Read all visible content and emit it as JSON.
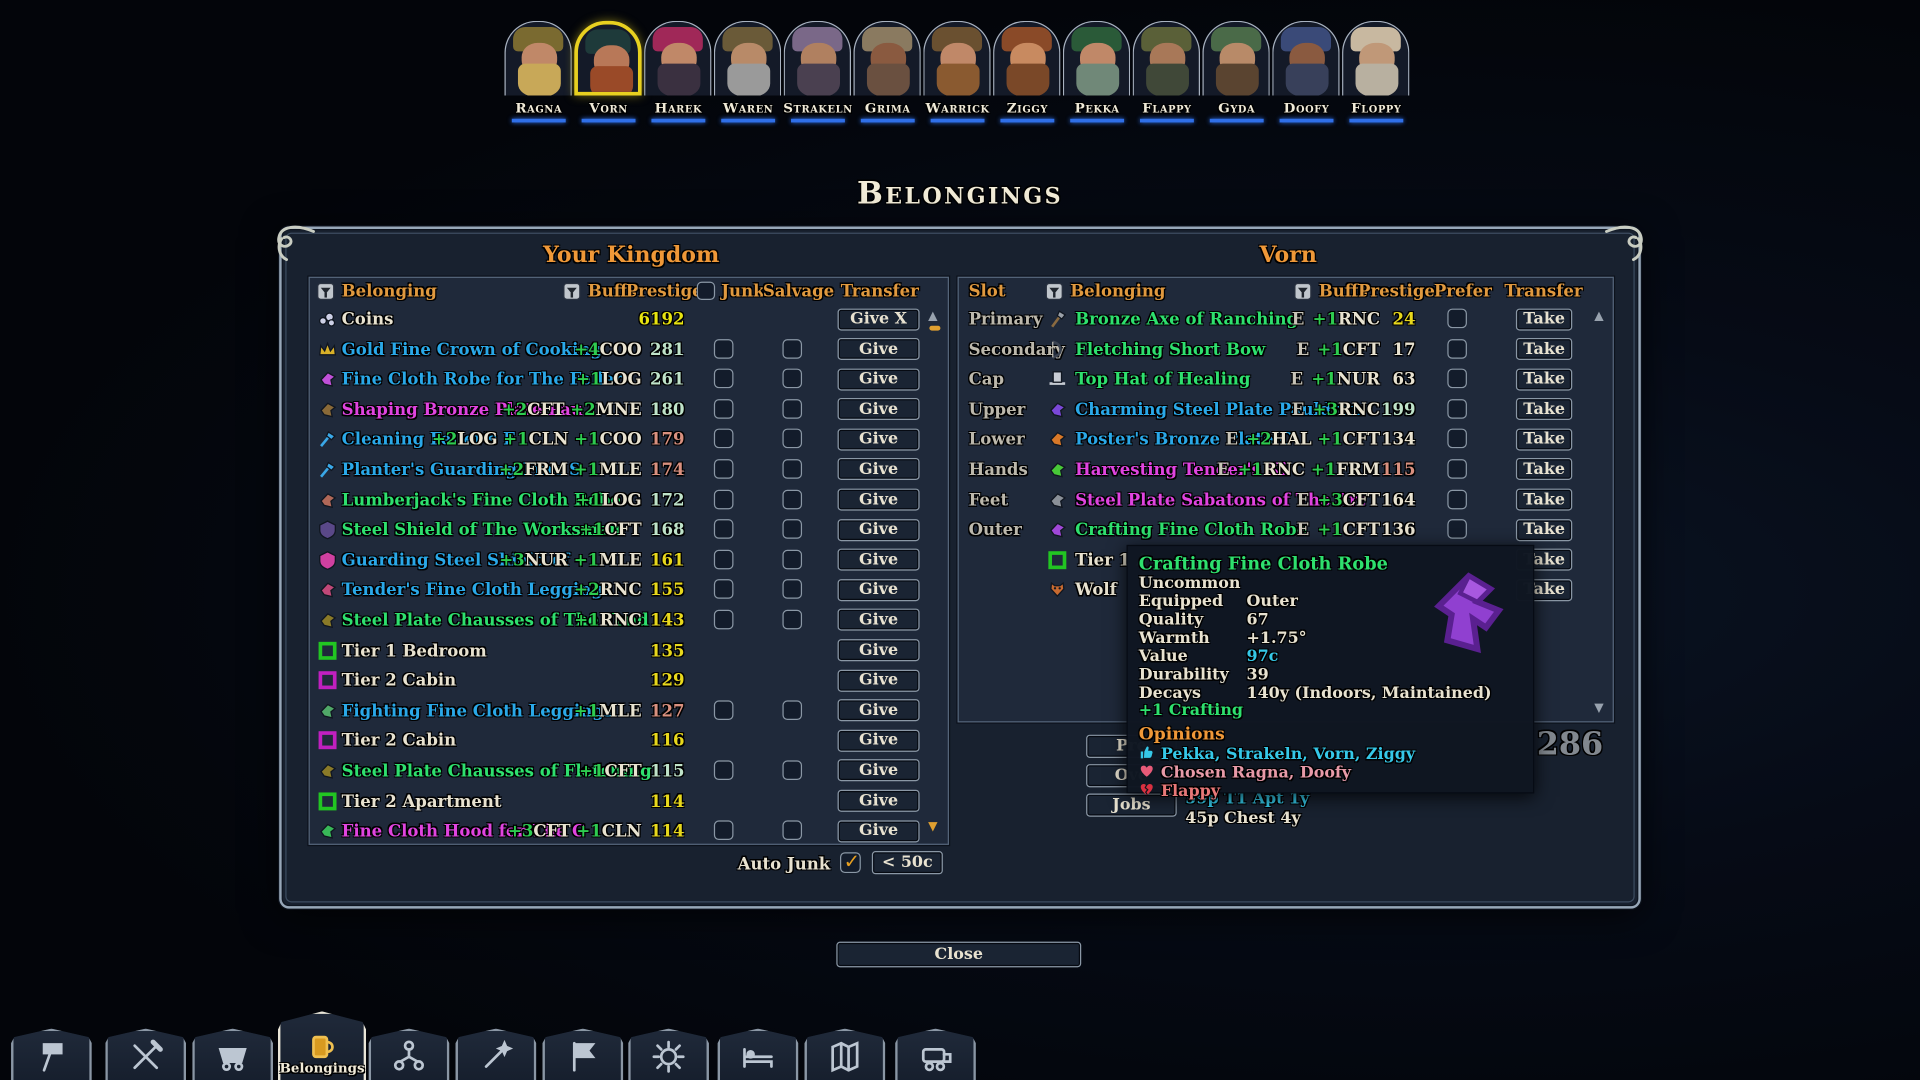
{
  "title": "Belongings",
  "close_label": "Close",
  "characters": [
    {
      "name": "Ragna"
    },
    {
      "name": "Vorn",
      "selected": true
    },
    {
      "name": "Harek"
    },
    {
      "name": "Waren"
    },
    {
      "name": "Strakeln"
    },
    {
      "name": "Grima"
    },
    {
      "name": "Warrick"
    },
    {
      "name": "Ziggy"
    },
    {
      "name": "Pekka"
    },
    {
      "name": "Flappy"
    },
    {
      "name": "Gyda"
    },
    {
      "name": "Doofy"
    },
    {
      "name": "Floppy"
    }
  ],
  "panel": {
    "left": {
      "title": "Your Kingdom",
      "headers": {
        "belonging": "Belonging",
        "buffs": "Buffs",
        "prestige": "Prestige",
        "junk": "Junk",
        "salvage": "Salvage",
        "transfer": "Transfer"
      },
      "rows": [
        {
          "icon": "coins",
          "icon_color": "#cdd0e6",
          "name": "Coins",
          "color": "#e8e2d0",
          "buffs": [],
          "prestige": "6192",
          "p_color": "#e8e410",
          "junk": false,
          "salvage": false,
          "transfer": "Give X"
        },
        {
          "icon": "crown",
          "icon_color": "#d8b028",
          "name": "Gold Fine Crown of Cooking",
          "color": "#2aa8e8",
          "buffs": [
            {
              "v": "+4",
              "c": "COO"
            }
          ],
          "prestige": "281",
          "p_color": "#bfe3c9",
          "junk": true,
          "salvage": true,
          "transfer": "Give"
        },
        {
          "icon": "cloth",
          "icon_color": "#c050d8",
          "name": "Fine Cloth Robe for The Feller",
          "color": "#2aa8e8",
          "buffs": [
            {
              "v": "+1",
              "c": "LOG"
            }
          ],
          "prestige": "261",
          "p_color": "#bfe3c9",
          "junk": true,
          "salvage": true,
          "transfer": "Give"
        },
        {
          "icon": "cloth",
          "icon_color": "#8a6a38",
          "name": "Shaping Bronze Plate Pau",
          "color": "#e044e0",
          "buffs": [
            {
              "v": "+2",
              "c": "CFT"
            },
            {
              "v": "+2",
              "c": "MNE"
            }
          ],
          "prestige": "180",
          "p_color": "#bfe3c9",
          "junk": true,
          "salvage": true,
          "transfer": "Give"
        },
        {
          "icon": "tool",
          "icon_color": "#3aa8e8",
          "name": "Cleaning Feller's F",
          "color": "#2aa8e8",
          "buffs": [
            {
              "v": "+2",
              "c": "LOG"
            },
            {
              "v": "+1",
              "c": "CLN"
            },
            {
              "v": "+1",
              "c": "COO"
            }
          ],
          "prestige": "179",
          "p_color": "#d9907f",
          "junk": true,
          "salvage": true,
          "transfer": "Give"
        },
        {
          "icon": "tool",
          "icon_color": "#3aa8e8",
          "name": "Planter's Guarding Fine S",
          "color": "#2aa8e8",
          "buffs": [
            {
              "v": "+2",
              "c": "FRM"
            },
            {
              "v": "+1",
              "c": "MLE"
            }
          ],
          "prestige": "174",
          "p_color": "#d9907f",
          "junk": true,
          "salvage": true,
          "transfer": "Give"
        },
        {
          "icon": "cloth",
          "icon_color": "#b06858",
          "name": "Lumberjack's Fine Cloth Robe",
          "color": "#2ee06e",
          "buffs": [
            {
              "v": "+1",
              "c": "LOG"
            }
          ],
          "prestige": "172",
          "p_color": "#bfe3c9",
          "junk": true,
          "salvage": true,
          "transfer": "Give"
        },
        {
          "icon": "shield",
          "icon_color": "#5a4888",
          "name": "Steel Shield of The Worksman",
          "color": "#2ee06e",
          "buffs": [
            {
              "v": "+1",
              "c": "CFT"
            }
          ],
          "prestige": "168",
          "p_color": "#bfe3c9",
          "junk": true,
          "salvage": true,
          "transfer": "Give"
        },
        {
          "icon": "shield",
          "icon_color": "#d040a0",
          "name": "Guarding Steel Shield of",
          "color": "#2aa8e8",
          "buffs": [
            {
              "v": "+3",
              "c": "NUR"
            },
            {
              "v": "+1",
              "c": "MLE"
            }
          ],
          "prestige": "161",
          "p_color": "#e8d81c",
          "junk": true,
          "salvage": true,
          "transfer": "Give"
        },
        {
          "icon": "cloth",
          "icon_color": "#c04878",
          "name": "Tender's Fine Cloth Leggings",
          "color": "#2aa8e8",
          "buffs": [
            {
              "v": "+2",
              "c": "RNC"
            }
          ],
          "prestige": "155",
          "p_color": "#e8d81c",
          "junk": true,
          "salvage": true,
          "transfer": "Give"
        },
        {
          "icon": "cloth",
          "icon_color": "#8a7a28",
          "name": "Steel Plate Chausses of The Tend",
          "color": "#2ee06e",
          "buffs": [
            {
              "v": "+1",
              "c": "RNC"
            }
          ],
          "prestige": "143",
          "p_color": "#e8d81c",
          "junk": true,
          "salvage": true,
          "transfer": "Give"
        },
        {
          "icon": "square",
          "icon_color": "#22c522",
          "name": "Tier 1 Bedroom",
          "color": "#e8e2d0",
          "buffs": [],
          "prestige": "135",
          "p_color": "#e8d81c",
          "junk": false,
          "salvage": false,
          "transfer": "Give"
        },
        {
          "icon": "square",
          "icon_color": "#c020c0",
          "name": "Tier 2 Cabin",
          "color": "#e8e2d0",
          "buffs": [],
          "prestige": "129",
          "p_color": "#e8d81c",
          "junk": false,
          "salvage": false,
          "transfer": "Give"
        },
        {
          "icon": "cloth",
          "icon_color": "#50a868",
          "name": "Fighting Fine Cloth Leggings",
          "color": "#2aa8e8",
          "buffs": [
            {
              "v": "+1",
              "c": "MLE"
            }
          ],
          "prestige": "127",
          "p_color": "#d9907f",
          "junk": true,
          "salvage": true,
          "transfer": "Give"
        },
        {
          "icon": "square",
          "icon_color": "#c020c0",
          "name": "Tier 2 Cabin",
          "color": "#e8e2d0",
          "buffs": [],
          "prestige": "116",
          "p_color": "#e8d81c",
          "junk": false,
          "salvage": false,
          "transfer": "Give"
        },
        {
          "icon": "cloth",
          "icon_color": "#8a7a28",
          "name": "Steel Plate Chausses of Fletching",
          "color": "#2ee06e",
          "buffs": [
            {
              "v": "+1",
              "c": "CFT"
            }
          ],
          "prestige": "115",
          "p_color": "#bfe3c9",
          "junk": true,
          "salvage": true,
          "transfer": "Give"
        },
        {
          "icon": "square",
          "icon_color": "#22c522",
          "name": "Tier 2 Apartment",
          "color": "#e8e2d0",
          "buffs": [],
          "prestige": "114",
          "p_color": "#e8d81c",
          "junk": false,
          "salvage": false,
          "transfer": "Give"
        },
        {
          "icon": "cloth",
          "icon_color": "#38b858",
          "name": "Fine Cloth Hood for The C",
          "color": "#e044e0",
          "buffs": [
            {
              "v": "+3",
              "c": "CFT"
            },
            {
              "v": "+1",
              "c": "CLN"
            }
          ],
          "prestige": "114",
          "p_color": "#e8d81c",
          "junk": true,
          "salvage": true,
          "transfer": "Give"
        }
      ],
      "auto_junk_label": "Auto Junk",
      "auto_junk_checked": true,
      "junk_threshold": "< 50c"
    },
    "right": {
      "title": "Vorn",
      "headers": {
        "slot": "Slot",
        "belonging": "Belonging",
        "buffs": "Buffs",
        "prestige": "Prestige",
        "prefer": "Prefer",
        "transfer": "Transfer"
      },
      "rows": [
        {
          "slot": "Primary",
          "icon": "axe",
          "icon_color": "#9aa0a8",
          "name": "Bronze Axe of Ranching",
          "color": "#2ee06e",
          "eq": "E",
          "buffs": [
            {
              "v": "+1",
              "c": "RNC"
            }
          ],
          "prestige": "24",
          "p_color": "#e8d81c",
          "prefer": true,
          "transfer": "Take"
        },
        {
          "slot": "Secondary",
          "icon": "bow",
          "icon_color": "#3a4250",
          "name": "Fletching Short Bow",
          "color": "#2ee06e",
          "eq": "E",
          "buffs": [
            {
              "v": "+1",
              "c": "CFT"
            }
          ],
          "prestige": "17",
          "p_color": "#e8e2d0",
          "prefer": true,
          "transfer": "Take"
        },
        {
          "slot": "Cap",
          "icon": "hat",
          "icon_color": "#c8ccd4",
          "name": "Top Hat of Healing",
          "color": "#2ee06e",
          "eq": "E",
          "buffs": [
            {
              "v": "+1",
              "c": "NUR"
            }
          ],
          "prestige": "63",
          "p_color": "#e8e2d0",
          "prefer": true,
          "transfer": "Take"
        },
        {
          "slot": "Upper",
          "icon": "cloth",
          "icon_color": "#7a48d8",
          "name": "Charming Steel Plate Pauldron",
          "color": "#2aa8e8",
          "eq": "E",
          "buffs": [
            {
              "v": "+3",
              "c": "RNC"
            }
          ],
          "prestige": "199",
          "p_color": "#bfe3c9",
          "prefer": true,
          "transfer": "Take"
        },
        {
          "slot": "Lower",
          "icon": "cloth",
          "icon_color": "#d87828",
          "name": "Poster's Bronze Plate C",
          "color": "#2aa8e8",
          "eq": "E",
          "buffs": [
            {
              "v": "+2",
              "c": "HAL"
            },
            {
              "v": "+1",
              "c": "CFT"
            }
          ],
          "prestige": "134",
          "p_color": "#e8e2d0",
          "prefer": true,
          "transfer": "Take"
        },
        {
          "slot": "Hands",
          "icon": "cloth",
          "icon_color": "#48c838",
          "name": "Harvesting Tender's Ki",
          "color": "#e044e0",
          "eq": "E",
          "buffs": [
            {
              "v": "+1",
              "c": "RNC"
            },
            {
              "v": "+1",
              "c": "FRM"
            }
          ],
          "prestige": "115",
          "p_color": "#d9907f",
          "prefer": true,
          "transfer": "Take"
        },
        {
          "slot": "Feet",
          "icon": "cloth",
          "icon_color": "#8a9098",
          "name": "Steel Plate Sabatons of The Art",
          "color": "#e044e0",
          "eq": "E",
          "buffs": [
            {
              "v": "+3",
              "c": "CFT"
            }
          ],
          "prestige": "164",
          "p_color": "#e8e2d0",
          "prefer": true,
          "transfer": "Take"
        },
        {
          "slot": "Outer",
          "icon": "cloth",
          "icon_color": "#a048d8",
          "name": "Crafting Fine Cloth Robe",
          "color": "#2ee06e",
          "eq": "E",
          "buffs": [
            {
              "v": "+1",
              "c": "CFT"
            }
          ],
          "prestige": "136",
          "p_color": "#e8e2d0",
          "prefer": true,
          "transfer": "Take"
        },
        {
          "slot": "",
          "icon": "square",
          "icon_color": "#22c522",
          "name": "Tier 1 A",
          "color": "#e8e2d0",
          "eq": "",
          "buffs": [],
          "prestige": "",
          "p_color": "#e8e2d0",
          "prefer": false,
          "transfer": "Take"
        },
        {
          "slot": "",
          "icon": "wolf",
          "icon_color": "#c86a30",
          "name": "Wolf",
          "color": "#e8e2d0",
          "eq": "",
          "buffs": [],
          "prestige": "",
          "p_color": "#e8e2d0",
          "prefer": false,
          "transfer": "Take"
        }
      ],
      "buttons": [
        {
          "label": "Pre"
        },
        {
          "label": "Ove"
        },
        {
          "label": "Jobs"
        }
      ],
      "prestige_total": "286",
      "upkeep": [
        {
          "text": "59p T1 Apt 1y",
          "color": "#35c8e8"
        },
        {
          "text": "45p Chest 4y",
          "color": "#e8e2d0"
        }
      ]
    }
  },
  "tooltip": {
    "title": "Crafting Fine Cloth Robe",
    "title_color": "#2ee06e",
    "rarity": "Uncommon",
    "stats": [
      {
        "label": "Equipped",
        "value": "Outer",
        "v_color": "#e8e2d0"
      },
      {
        "label": "Quality",
        "value": "67",
        "v_color": "#e8e2d0"
      },
      {
        "label": "Warmth",
        "value": "+1.75°",
        "v_color": "#e8e2d0"
      },
      {
        "label": "Value",
        "value": "97c",
        "v_color": "#35c8e8"
      },
      {
        "label": "Durability",
        "value": "39",
        "v_color": "#e8e2d0"
      },
      {
        "label": "Decays",
        "value": "140y (Indoors, Maintained)",
        "v_color": "#e8e2d0"
      }
    ],
    "bonus": "+1 Crafting",
    "bonus_color": "#2ee06e",
    "opinions_title": "Opinions",
    "opinions": [
      {
        "icon": "thumb-up",
        "icon_color": "#35c8e8",
        "text": "Pekka, Strakeln, Vorn, Ziggy",
        "t_color": "#35c8e8"
      },
      {
        "icon": "heart",
        "icon_color": "#e85a78",
        "text": "Chosen Ragna, Doofy",
        "t_color": "#e89aa8"
      },
      {
        "icon": "broken-heart",
        "icon_color": "#d83040",
        "text": "Flappy",
        "t_color": "#e87878"
      }
    ],
    "item_color": "#9040d0"
  },
  "toolbar": {
    "selected_label": "Belongings",
    "items": [
      {
        "icon": "hammer"
      },
      {
        "icon": "tools"
      },
      {
        "icon": "minecart"
      },
      {
        "icon": "belongings",
        "selected": true,
        "accent": "#d89a20"
      },
      {
        "icon": "tree"
      },
      {
        "icon": "magic"
      },
      {
        "icon": "tasks"
      },
      {
        "icon": "daylight"
      },
      {
        "icon": "bed"
      },
      {
        "icon": "map"
      },
      {
        "icon": "caravan"
      }
    ]
  }
}
